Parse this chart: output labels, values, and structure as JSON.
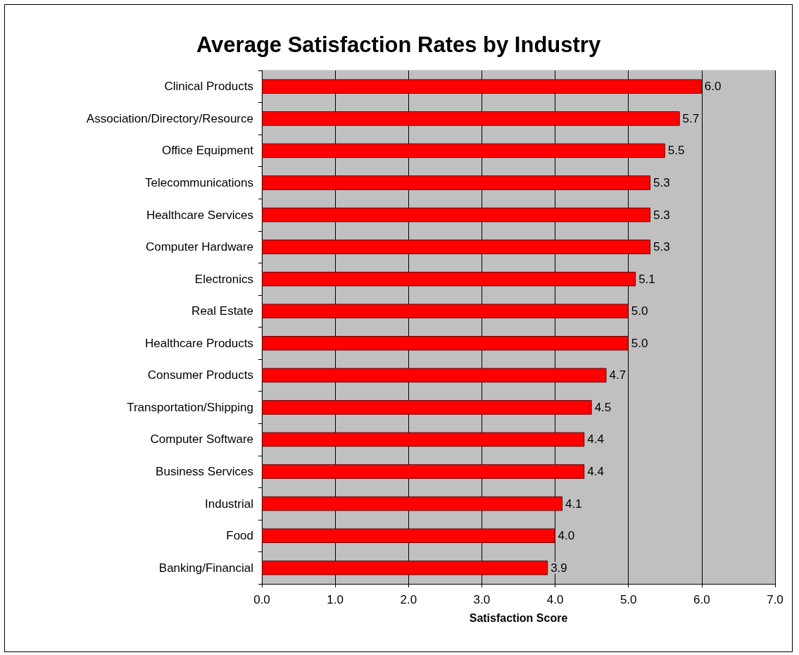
{
  "chart_data": {
    "type": "bar",
    "orientation": "horizontal",
    "title": "Average Satisfaction Rates by Industry",
    "xlabel": "Satisfaction Score",
    "categories": [
      "Clinical Products",
      "Association/Directory/Resource",
      "Office Equipment",
      "Telecommunications",
      "Healthcare Services",
      "Computer Hardware",
      "Electronics",
      "Real Estate",
      "Healthcare Products",
      "Consumer Products",
      "Transportation/Shipping",
      "Computer Software",
      "Business Services",
      "Industrial",
      "Food",
      "Banking/Financial"
    ],
    "values": [
      6.0,
      5.7,
      5.5,
      5.3,
      5.3,
      5.3,
      5.1,
      5.0,
      5.0,
      4.7,
      4.5,
      4.4,
      4.4,
      4.1,
      4.0,
      3.9
    ],
    "value_labels": [
      "6.0",
      "5.7",
      "5.5",
      "5.3",
      "5.3",
      "5.3",
      "5.1",
      "5.0",
      "5.0",
      "4.7",
      "4.5",
      "4.4",
      "4.4",
      "4.1",
      "4.0",
      "3.9"
    ],
    "color": "#ff0000",
    "xlim": [
      0,
      7
    ],
    "xticks": [
      {
        "value": 0,
        "label": "0.0"
      },
      {
        "value": 1,
        "label": "1.0"
      },
      {
        "value": 2,
        "label": "2.0"
      },
      {
        "value": 3,
        "label": "3.0"
      },
      {
        "value": 4,
        "label": "4.0"
      },
      {
        "value": 5,
        "label": "5.0"
      },
      {
        "value": 6,
        "label": "6.0"
      },
      {
        "value": 7,
        "label": "7.0"
      }
    ],
    "grid": "x"
  }
}
